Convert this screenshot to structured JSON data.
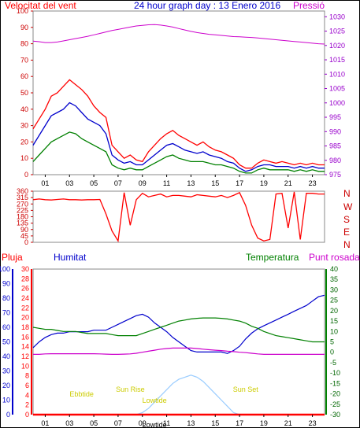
{
  "header": {
    "left_label": "Velocitat del vent",
    "title": "24 hour graph day : 13 Enero 2016",
    "right_label": "Pressió"
  },
  "colors": {
    "red": "#ff0000",
    "blue": "#0000cc",
    "green": "#008000",
    "magenta": "#cc00cc",
    "darkred": "#cc0000",
    "darkgreen": "#006600",
    "purple": "#9900cc",
    "yellow": "#e6e600",
    "lightblue": "#99ccff"
  },
  "legend2": {
    "pluja": "Pluja",
    "humitat": "Humitat",
    "temperatura": "Temperatura",
    "punt_rosada": "Punt rosada"
  },
  "compass": [
    "N",
    "W",
    "S",
    "E",
    "N"
  ],
  "chart_data": [
    {
      "type": "line",
      "panel": "wind-pressure",
      "x_ticks": [
        "01",
        "03",
        "05",
        "07",
        "09",
        "11",
        "13",
        "15",
        "17",
        "19",
        "21",
        "23"
      ],
      "y_left": {
        "ticks": [
          0,
          10,
          20,
          30,
          40,
          50,
          60,
          70,
          80,
          90,
          100
        ],
        "ylim": [
          0,
          100
        ]
      },
      "y_right": {
        "ticks": [
          975,
          980,
          985,
          990,
          995,
          1000,
          1005,
          1010,
          1015,
          1020,
          1025,
          1030
        ],
        "ylim": [
          975,
          1032
        ]
      },
      "x": [
        0,
        0.5,
        1,
        1.5,
        2,
        2.5,
        3,
        3.5,
        4,
        4.5,
        5,
        5.5,
        6,
        6.5,
        7,
        7.5,
        8,
        8.5,
        9,
        9.5,
        10,
        10.5,
        11,
        11.5,
        12,
        12.5,
        13,
        13.5,
        14,
        14.5,
        15,
        15.5,
        16,
        16.5,
        17,
        17.5,
        18,
        18.5,
        19,
        19.5,
        20,
        20.5,
        21,
        21.5,
        22,
        22.5,
        23,
        23.5,
        24
      ],
      "series": [
        {
          "color": "red",
          "axis": "left",
          "values": [
            28,
            34,
            40,
            48,
            50,
            54,
            58,
            55,
            52,
            48,
            42,
            38,
            35,
            18,
            14,
            10,
            12,
            9,
            8,
            14,
            18,
            22,
            25,
            27,
            24,
            22,
            20,
            18,
            20,
            17,
            15,
            14,
            12,
            10,
            6,
            4,
            4,
            7,
            9,
            8,
            7,
            8,
            7,
            6,
            7,
            6,
            7,
            6,
            6
          ]
        },
        {
          "color": "blue",
          "axis": "left",
          "values": [
            18,
            24,
            30,
            36,
            38,
            40,
            44,
            42,
            38,
            34,
            32,
            30,
            25,
            12,
            9,
            7,
            8,
            6,
            6,
            9,
            12,
            15,
            18,
            19,
            17,
            15,
            14,
            13,
            14,
            12,
            11,
            10,
            8,
            7,
            4,
            2,
            3,
            5,
            6,
            6,
            5,
            5,
            5,
            4,
            5,
            4,
            5,
            4,
            4
          ]
        },
        {
          "color": "green",
          "axis": "left",
          "values": [
            8,
            12,
            16,
            20,
            22,
            24,
            26,
            25,
            22,
            20,
            18,
            16,
            14,
            6,
            4,
            3,
            4,
            3,
            3,
            5,
            7,
            9,
            11,
            12,
            10,
            9,
            8,
            8,
            8,
            7,
            6,
            6,
            5,
            4,
            2,
            1,
            1,
            3,
            4,
            3,
            3,
            3,
            3,
            2,
            3,
            2,
            3,
            2,
            2
          ]
        },
        {
          "color": "magenta",
          "axis": "right",
          "values": [
            1021.5,
            1021.3,
            1021.0,
            1021.0,
            1021.2,
            1021.6,
            1022.0,
            1022.4,
            1022.8,
            1023.2,
            1023.7,
            1024.2,
            1024.7,
            1025.2,
            1025.6,
            1026.0,
            1026.4,
            1026.8,
            1027.0,
            1027.2,
            1027.3,
            1027.1,
            1026.8,
            1026.4,
            1025.9,
            1025.4,
            1024.9,
            1024.5,
            1024.2,
            1023.9,
            1023.7,
            1023.5,
            1023.3,
            1023.1,
            1023.0,
            1022.9,
            1022.8,
            1022.6,
            1022.4,
            1022.2,
            1022.0,
            1021.8,
            1021.6,
            1021.4,
            1021.2,
            1021.0,
            1020.8,
            1020.6,
            1020.5
          ]
        }
      ]
    },
    {
      "type": "line",
      "panel": "wind-direction",
      "x_ticks": [
        "01",
        "03",
        "05",
        "07",
        "09",
        "11",
        "13",
        "15",
        "17",
        "19",
        "21",
        "23"
      ],
      "y_left": {
        "ticks": [
          0,
          45,
          90,
          135,
          180,
          225,
          270,
          315,
          360
        ],
        "ylim": [
          0,
          360
        ]
      },
      "x": [
        0,
        0.5,
        1,
        1.5,
        2,
        2.5,
        3,
        3.5,
        4,
        4.5,
        5,
        5.5,
        6,
        6.5,
        7,
        7.5,
        8,
        8.5,
        9,
        9.5,
        10,
        10.5,
        11,
        11.5,
        12,
        12.5,
        13,
        13.5,
        14,
        14.5,
        15,
        15.5,
        16,
        16.5,
        17,
        17.5,
        18,
        18.5,
        19,
        19.5,
        20,
        20.5,
        21,
        21.5,
        22,
        22.5,
        23,
        23.5,
        24
      ],
      "series": [
        {
          "color": "red",
          "values": [
            300,
            305,
            300,
            298,
            302,
            305,
            300,
            300,
            298,
            300,
            300,
            302,
            200,
            80,
            10,
            350,
            120,
            300,
            345,
            320,
            330,
            340,
            320,
            330,
            330,
            325,
            320,
            335,
            330,
            325,
            320,
            330,
            315,
            330,
            350,
            260,
            120,
            30,
            10,
            20,
            340,
            345,
            100,
            355,
            20,
            345,
            345,
            340,
            340
          ]
        }
      ]
    },
    {
      "type": "line",
      "panel": "humidity-temperature-rain",
      "x_ticks": [
        "01",
        "03",
        "05",
        "07",
        "09",
        "11",
        "13",
        "15",
        "17",
        "19",
        "21",
        "23"
      ],
      "y_pluja": {
        "ticks": [
          0,
          2,
          4,
          6,
          8,
          10,
          12,
          14,
          16,
          18,
          20,
          22,
          24,
          26,
          28,
          30
        ],
        "ylim": [
          0,
          30
        ]
      },
      "y_humitat": {
        "ticks": [
          0,
          10,
          20,
          30,
          40,
          50,
          60,
          70,
          80,
          90,
          100
        ],
        "ylim": [
          0,
          100
        ]
      },
      "y_temp": {
        "ticks": [
          -30,
          -25,
          -20,
          -15,
          -10,
          -5,
          0,
          5,
          10,
          15,
          20,
          25,
          30,
          35,
          40
        ],
        "ylim": [
          -30,
          40
        ]
      },
      "x": [
        0,
        0.5,
        1,
        1.5,
        2,
        2.5,
        3,
        3.5,
        4,
        4.5,
        5,
        5.5,
        6,
        6.5,
        7,
        7.5,
        8,
        8.5,
        9,
        9.5,
        10,
        10.5,
        11,
        11.5,
        12,
        12.5,
        13,
        13.5,
        14,
        14.5,
        15,
        15.5,
        16,
        16.5,
        17,
        17.5,
        18,
        18.5,
        19,
        19.5,
        20,
        20.5,
        21,
        21.5,
        22,
        22.5,
        23,
        23.5,
        24
      ],
      "annotations": [
        "Ebbtide",
        "Sun Rise",
        "Lowtide",
        "Sun Set",
        "Lowtide"
      ],
      "series": [
        {
          "color": "blue",
          "axis": "humitat",
          "values": [
            46,
            50,
            53,
            55,
            56,
            56,
            57,
            57,
            57,
            57,
            58,
            58,
            58,
            60,
            62,
            64,
            66,
            68,
            69,
            67,
            63,
            60,
            57,
            53,
            50,
            47,
            44,
            43,
            43,
            43,
            43,
            43,
            42,
            44,
            47,
            52,
            56,
            59,
            61,
            63,
            65,
            67,
            69,
            71,
            73,
            75,
            78,
            81,
            82
          ]
        },
        {
          "color": "green",
          "axis": "temp",
          "values": [
            12,
            11.5,
            11,
            11,
            10.5,
            10,
            10,
            10,
            9.5,
            9,
            9,
            9,
            9,
            8.5,
            8,
            8,
            8,
            8,
            9,
            10,
            11,
            12,
            13,
            14,
            15,
            15.5,
            16,
            16.3,
            16.5,
            16.5,
            16.5,
            16.3,
            16,
            15.5,
            15,
            14,
            12.5,
            11.5,
            10,
            9,
            8,
            7.5,
            7,
            6.5,
            6,
            5.5,
            5,
            5,
            5
          ]
        },
        {
          "color": "magenta",
          "axis": "temp",
          "values": [
            -1,
            -1,
            -0.8,
            -0.7,
            -0.7,
            -0.7,
            -0.7,
            -0.7,
            -0.7,
            -0.7,
            -0.7,
            -0.8,
            -0.9,
            -1,
            -1,
            -0.9,
            -0.8,
            -0.5,
            0,
            0.5,
            1,
            1.5,
            1.8,
            2,
            2,
            2,
            2,
            1.8,
            1.5,
            1.2,
            1,
            0.8,
            0.5,
            0.3,
            0,
            -0.2,
            -0.5,
            -0.8,
            -1,
            -1,
            -1,
            -1,
            -1,
            -1,
            -1,
            -1,
            -1,
            -1,
            -1
          ]
        },
        {
          "color": "lightblue",
          "axis": "temp",
          "values": [
            -30,
            -30,
            -30,
            -30,
            -30,
            -30,
            -30,
            -30,
            -30,
            -30,
            -30,
            -30,
            -30,
            -30,
            -30,
            -30,
            -30,
            -30,
            -29,
            -27,
            -24,
            -21,
            -18,
            -15,
            -13,
            -12,
            -11,
            -12,
            -14,
            -17,
            -20,
            -23,
            -26,
            -29,
            -30,
            -30,
            -30,
            -30,
            -30,
            -30,
            -30,
            -30,
            -30,
            -30,
            -30,
            -30,
            -30,
            -30,
            -30
          ]
        },
        {
          "color": "red",
          "axis": "pluja",
          "values": [
            0,
            0,
            0,
            0,
            0,
            0,
            0,
            0,
            0,
            0,
            0,
            0,
            0,
            0,
            0,
            0,
            0,
            0,
            0,
            0,
            0,
            0,
            0,
            0,
            0,
            0,
            0,
            0,
            0,
            0,
            0,
            0,
            0,
            0,
            0,
            0,
            0,
            0,
            0,
            0,
            0,
            0,
            0,
            0,
            0,
            0,
            0,
            0,
            0
          ]
        }
      ]
    }
  ]
}
